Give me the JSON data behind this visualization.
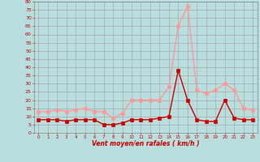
{
  "hours": [
    0,
    1,
    2,
    3,
    4,
    5,
    6,
    7,
    8,
    9,
    10,
    11,
    12,
    13,
    14,
    15,
    16,
    17,
    18,
    19,
    20,
    21,
    22,
    23
  ],
  "wind_avg": [
    8,
    8,
    8,
    7,
    8,
    8,
    8,
    5,
    5,
    6,
    8,
    8,
    8,
    9,
    10,
    38,
    20,
    8,
    7,
    7,
    20,
    9,
    8,
    8
  ],
  "wind_gust": [
    13,
    13,
    14,
    13,
    14,
    15,
    13,
    13,
    9,
    12,
    20,
    20,
    20,
    20,
    28,
    65,
    77,
    26,
    24,
    26,
    30,
    26,
    15,
    14
  ],
  "bg_color": "#b8dede",
  "grid_color": "#aaaaaa",
  "line_avg_color": "#cc0000",
  "line_gust_color": "#ff9999",
  "xlabel": "Vent moyen/en rafales ( km/h )",
  "xlabel_color": "#cc0000",
  "tick_color": "#cc0000",
  "ylim": [
    0,
    80
  ],
  "yticks": [
    0,
    5,
    10,
    15,
    20,
    25,
    30,
    35,
    40,
    45,
    50,
    55,
    60,
    65,
    70,
    75,
    80
  ],
  "marker_size": 2.5,
  "linewidth": 1.0
}
